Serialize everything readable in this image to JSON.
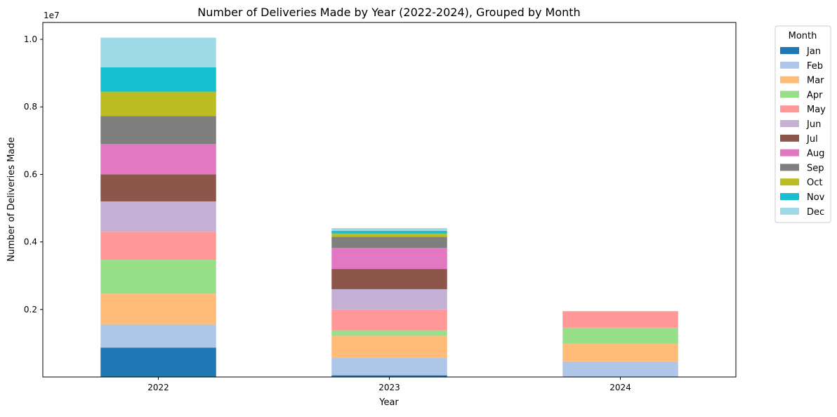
{
  "chart_data": {
    "type": "bar",
    "stacked": true,
    "title": "Number of Deliveries Made by Year (2022-2024), Grouped by Month",
    "xlabel": "Year",
    "ylabel": "Number of Deliveries Made",
    "y_offset_label": "1e7",
    "ylim": [
      0,
      1.05
    ],
    "y_scale_multiplier": 10000000,
    "yticks": [
      0.2,
      0.4,
      0.6,
      0.8,
      1.0
    ],
    "ytick_labels": [
      "0.2",
      "0.4",
      "0.6",
      "0.8",
      "1.0"
    ],
    "categories": [
      "2022",
      "2023",
      "2024"
    ],
    "legend_title": "Month",
    "legend_position": "outside-top-right",
    "grid": false,
    "series": [
      {
        "name": "Jan",
        "color": "#1f77b4",
        "values": [
          0.087,
          0.005,
          0.0
        ]
      },
      {
        "name": "Feb",
        "color": "#aec7e8",
        "values": [
          0.068,
          0.051,
          0.046
        ]
      },
      {
        "name": "Mar",
        "color": "#ffbb78",
        "values": [
          0.092,
          0.066,
          0.052
        ]
      },
      {
        "name": "Apr",
        "color": "#98df8a",
        "values": [
          0.1,
          0.016,
          0.048
        ]
      },
      {
        "name": "May",
        "color": "#ff9896",
        "values": [
          0.083,
          0.062,
          0.049
        ]
      },
      {
        "name": "Jun",
        "color": "#c5b0d5",
        "values": [
          0.09,
          0.06,
          0.0
        ]
      },
      {
        "name": "Jul",
        "color": "#8c564b",
        "values": [
          0.08,
          0.06,
          0.0
        ]
      },
      {
        "name": "Aug",
        "color": "#e377c2",
        "values": [
          0.09,
          0.062,
          0.0
        ]
      },
      {
        "name": "Sep",
        "color": "#7f7f7f",
        "values": [
          0.083,
          0.033,
          0.0
        ]
      },
      {
        "name": "Oct",
        "color": "#bcbd22",
        "values": [
          0.072,
          0.01,
          0.0
        ]
      },
      {
        "name": "Nov",
        "color": "#17becf",
        "values": [
          0.072,
          0.008,
          0.0
        ]
      },
      {
        "name": "Dec",
        "color": "#9edae5",
        "values": [
          0.088,
          0.008,
          0.0
        ]
      }
    ]
  }
}
